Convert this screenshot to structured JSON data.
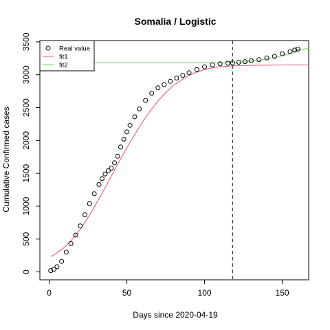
{
  "chart_data": {
    "type": "scatter",
    "title": "Somalia / Logistic",
    "xlabel": "Days since 2020-04-19",
    "ylabel": "Cumulative Confirmed cases",
    "xlim": [
      -6,
      167
    ],
    "ylim": [
      -120,
      3520
    ],
    "x_ticks": [
      0,
      50,
      100,
      150
    ],
    "y_ticks": [
      0,
      500,
      1000,
      1500,
      2000,
      2500,
      3000,
      3500
    ],
    "vline_x": 118,
    "legend_position": "top-left",
    "grid": false,
    "legend": [
      {
        "label": "Real value",
        "kind": "point",
        "color": "#000000"
      },
      {
        "label": "fit1",
        "kind": "line",
        "color": "#DF536B"
      },
      {
        "label": "fit2",
        "kind": "line",
        "color": "#61D04F"
      }
    ],
    "series": [
      {
        "name": "Real value",
        "kind": "points",
        "color": "#000000",
        "x": [
          1,
          3,
          5,
          8,
          11,
          14,
          17,
          20,
          23,
          26,
          29,
          32,
          34,
          36,
          38,
          40,
          42,
          44,
          46,
          48,
          50,
          52,
          55,
          58,
          62,
          66,
          70,
          74,
          78,
          82,
          86,
          90,
          95,
          100,
          105,
          110,
          115,
          118,
          122,
          126,
          130,
          135,
          140,
          145,
          150,
          155,
          158,
          160
        ],
        "y": [
          20,
          40,
          80,
          160,
          300,
          430,
          560,
          700,
          870,
          1040,
          1190,
          1330,
          1420,
          1490,
          1540,
          1580,
          1660,
          1760,
          1900,
          2020,
          2130,
          2230,
          2360,
          2480,
          2610,
          2720,
          2800,
          2850,
          2900,
          2950,
          2990,
          3030,
          3080,
          3120,
          3150,
          3165,
          3175,
          3180,
          3190,
          3200,
          3215,
          3230,
          3255,
          3280,
          3320,
          3350,
          3375,
          3390
        ]
      },
      {
        "name": "fit1",
        "kind": "line",
        "color": "#DF536B",
        "x": [
          1,
          5,
          10,
          15,
          20,
          25,
          30,
          35,
          40,
          45,
          50,
          55,
          60,
          65,
          70,
          75,
          80,
          85,
          90,
          95,
          100,
          105,
          110,
          115,
          118,
          125,
          135,
          145,
          155,
          167
        ],
        "y": [
          230,
          290,
          380,
          500,
          650,
          830,
          1030,
          1240,
          1460,
          1680,
          1890,
          2090,
          2280,
          2450,
          2600,
          2730,
          2840,
          2920,
          2990,
          3040,
          3080,
          3105,
          3120,
          3130,
          3135,
          3140,
          3145,
          3148,
          3150,
          3150
        ]
      },
      {
        "name": "fit2",
        "kind": "line",
        "color": "#61D04F",
        "x": [
          -6,
          118,
          125,
          135,
          145,
          155,
          160,
          167
        ],
        "y": [
          3180,
          3180,
          3195,
          3220,
          3260,
          3320,
          3380,
          3400
        ]
      }
    ]
  }
}
